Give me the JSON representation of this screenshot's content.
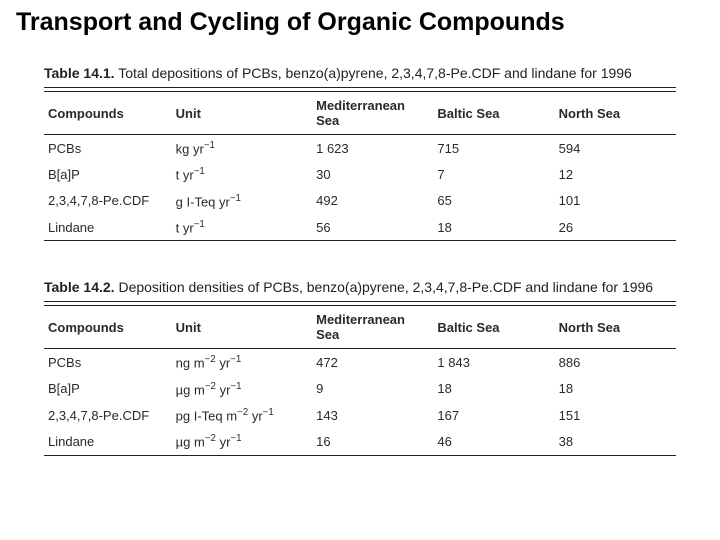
{
  "page_title": "Transport and Cycling of Organic Compounds",
  "table1": {
    "caption_label": "Table 14.1.",
    "caption_text": " Total depositions of PCBs, benzo(a)pyrene, 2,3,4,7,8-Pe.CDF and lindane for 1996",
    "headers": [
      "Compounds",
      "Unit",
      "Mediterranean Sea",
      "Baltic Sea",
      "North Sea"
    ],
    "rows": [
      {
        "compound": "PCBs",
        "unit_html": "kg yr<sup class='neg'>−1</sup>",
        "v": [
          "1 623",
          "715",
          "594"
        ]
      },
      {
        "compound": "B[a]P",
        "unit_html": "t yr<sup class='neg'>−1</sup>",
        "v": [
          "30",
          "7",
          "12"
        ]
      },
      {
        "compound": "2,3,4,7,8-Pe.CDF",
        "unit_html": "g I-Teq yr<sup class='neg'>−1</sup>",
        "v": [
          "492",
          "65",
          "101"
        ]
      },
      {
        "compound": "Lindane",
        "unit_html": "t yr<sup class='neg'>−1</sup>",
        "v": [
          "56",
          "18",
          "26"
        ]
      }
    ]
  },
  "table2": {
    "caption_label": "Table 14.2.",
    "caption_text": " Deposition densities of PCBs, benzo(a)pyrene, 2,3,4,7,8-Pe.CDF and lindane for 1996",
    "headers": [
      "Compounds",
      "Unit",
      "Mediterranean Sea",
      "Baltic Sea",
      "North Sea"
    ],
    "rows": [
      {
        "compound": "PCBs",
        "unit_html": "ng m<sup class='neg'>−2</sup> yr<sup class='neg'>−1</sup>",
        "v": [
          "472",
          "1 843",
          "886"
        ]
      },
      {
        "compound": "B[a]P",
        "unit_html": "µg m<sup class='neg'>−2</sup> yr<sup class='neg'>−1</sup>",
        "v": [
          "9",
          "18",
          "18"
        ]
      },
      {
        "compound": "2,3,4,7,8-Pe.CDF",
        "unit_html": "pg I-Teq m<sup class='neg'>−2</sup> yr<sup class='neg'>−1</sup>",
        "v": [
          "143",
          "167",
          "151"
        ]
      },
      {
        "compound": "Lindane",
        "unit_html": "µg m<sup class='neg'>−2</sup> yr<sup class='neg'>−1</sup>",
        "v": [
          "16",
          "46",
          "38"
        ]
      }
    ]
  }
}
